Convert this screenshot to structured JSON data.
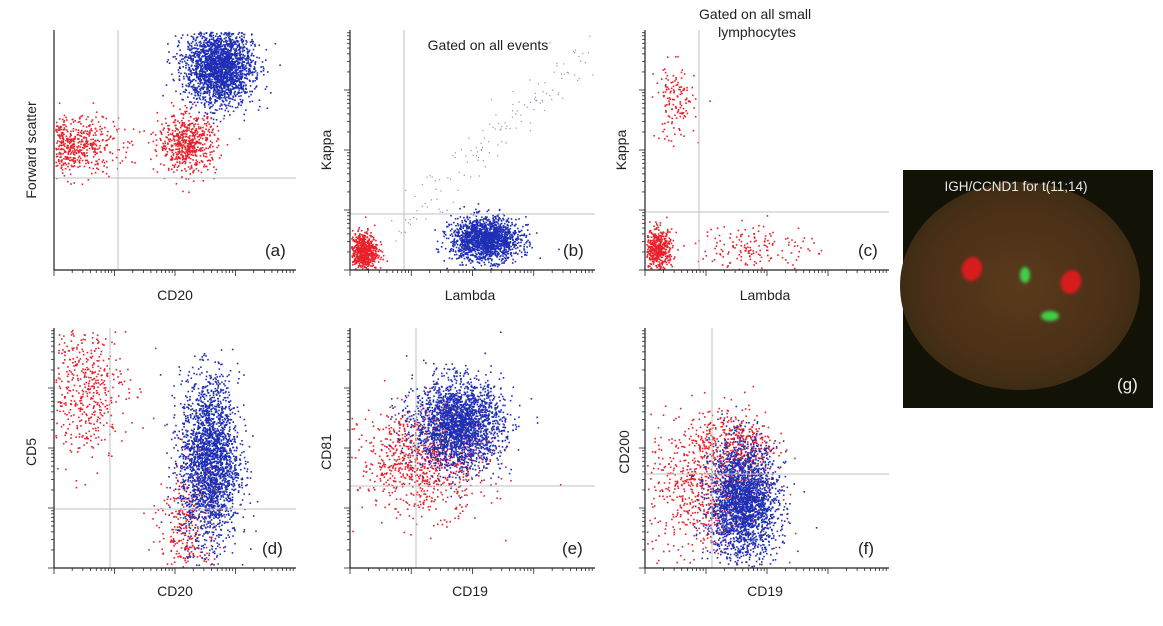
{
  "figure": {
    "colors": {
      "red": "#e8202a",
      "blue": "#1f2fb5",
      "gate_line": "#c0c0c0",
      "axis": "#222222"
    }
  },
  "chart_data": [
    {
      "type": "scatter",
      "panel": "(a)",
      "xlabel": "CD20",
      "ylabel": "Forward scatter",
      "title": "",
      "x_scale": "log",
      "series": [
        {
          "color": "#e8202a",
          "clusters": [
            {
              "x": 0.06,
              "y": 0.52,
              "sx": 0.1,
              "sy": 0.06,
              "n": 650
            },
            {
              "x": 0.55,
              "y": 0.53,
              "sx": 0.06,
              "sy": 0.06,
              "n": 600
            }
          ]
        },
        {
          "color": "#1f2fb5",
          "clusters": [
            {
              "x": 0.68,
              "y": 0.85,
              "sx": 0.07,
              "sy": 0.08,
              "n": 2300
            }
          ]
        }
      ]
    },
    {
      "type": "scatter",
      "panel": "(b)",
      "xlabel": "Lambda",
      "ylabel": "Kappa",
      "title": "Gated on all events",
      "x_scale": "log",
      "y_scale": "log",
      "series": [
        {
          "color": "#e8202a",
          "clusters": [
            {
              "x": 0.05,
              "y": 0.08,
              "sx": 0.03,
              "sy": 0.04,
              "n": 650
            }
          ]
        },
        {
          "color": "#1f2fb5",
          "clusters": [
            {
              "x": 0.55,
              "y": 0.13,
              "sx": 0.07,
              "sy": 0.045,
              "n": 1700
            }
          ]
        }
      ]
    },
    {
      "type": "scatter",
      "panel": "(c)",
      "xlabel": "Lambda",
      "ylabel": "Kappa",
      "title": "Gated on all small lymphocytes",
      "x_scale": "log",
      "y_scale": "log",
      "series": [
        {
          "color": "#e8202a",
          "clusters": [
            {
              "x": 0.05,
              "y": 0.09,
              "sx": 0.03,
              "sy": 0.04,
              "n": 500
            },
            {
              "x": 0.12,
              "y": 0.7,
              "sx": 0.04,
              "sy": 0.08,
              "n": 140
            },
            {
              "x": 0.45,
              "y": 0.1,
              "sx": 0.12,
              "sy": 0.05,
              "n": 160
            }
          ]
        }
      ]
    },
    {
      "type": "scatter",
      "panel": "(d)",
      "xlabel": "CD20",
      "ylabel": "CD5",
      "title": "",
      "x_scale": "log",
      "y_scale": "log",
      "series": [
        {
          "color": "#e8202a",
          "clusters": [
            {
              "x": 0.12,
              "y": 0.75,
              "sx": 0.09,
              "sy": 0.14,
              "n": 500
            },
            {
              "x": 0.55,
              "y": 0.18,
              "sx": 0.06,
              "sy": 0.14,
              "n": 350
            }
          ]
        },
        {
          "color": "#1f2fb5",
          "clusters": [
            {
              "x": 0.64,
              "y": 0.45,
              "sx": 0.06,
              "sy": 0.17,
              "n": 2400
            }
          ]
        }
      ]
    },
    {
      "type": "scatter",
      "panel": "(e)",
      "xlabel": "CD19",
      "ylabel": "CD81",
      "title": "",
      "x_scale": "log",
      "y_scale": "log",
      "series": [
        {
          "color": "#e8202a",
          "clusters": [
            {
              "x": 0.3,
              "y": 0.45,
              "sx": 0.13,
              "sy": 0.11,
              "n": 900
            }
          ]
        },
        {
          "color": "#1f2fb5",
          "clusters": [
            {
              "x": 0.44,
              "y": 0.6,
              "sx": 0.09,
              "sy": 0.09,
              "n": 2400
            }
          ]
        }
      ]
    },
    {
      "type": "scatter",
      "panel": "(f)",
      "xlabel": "CD19",
      "ylabel": "CD200",
      "title": "",
      "x_scale": "log",
      "y_scale": "log",
      "series": [
        {
          "color": "#e8202a",
          "clusters": [
            {
              "x": 0.25,
              "y": 0.35,
              "sx": 0.12,
              "sy": 0.15,
              "n": 850
            },
            {
              "x": 0.38,
              "y": 0.52,
              "sx": 0.07,
              "sy": 0.06,
              "n": 300
            }
          ]
        },
        {
          "color": "#1f2fb5",
          "clusters": [
            {
              "x": 0.4,
              "y": 0.28,
              "sx": 0.07,
              "sy": 0.12,
              "n": 2400
            }
          ]
        }
      ]
    }
  ],
  "fish": {
    "caption": "IGH/CCND1 for t(11;14)",
    "panel": "(g)",
    "signals": {
      "red": 2,
      "green": 2,
      "fusion": 0
    }
  }
}
